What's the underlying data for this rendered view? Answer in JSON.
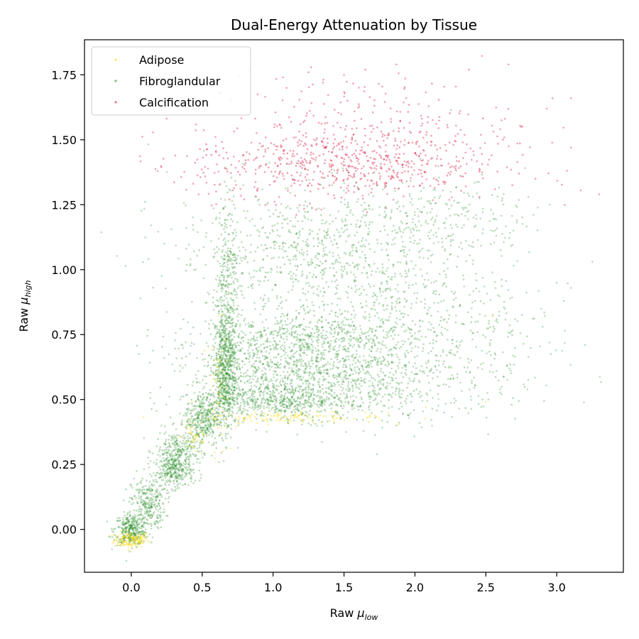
{
  "chart_data": {
    "type": "scatter",
    "title": "Dual-Energy Attenuation by Tissue",
    "xlabel": {
      "prefix": "Raw ",
      "symbol": "μ",
      "subscript": "low"
    },
    "ylabel": {
      "prefix": "Raw ",
      "symbol": "μ",
      "subscript": "high"
    },
    "xlim": [
      -0.33,
      3.47
    ],
    "ylim": [
      -0.165,
      1.885
    ],
    "xticks": [
      0.0,
      0.5,
      1.0,
      1.5,
      2.0,
      2.5,
      3.0
    ],
    "xtick_labels": [
      "0.0",
      "0.5",
      "1.0",
      "1.5",
      "2.0",
      "2.5",
      "3.0"
    ],
    "yticks": [
      0.0,
      0.25,
      0.5,
      0.75,
      1.0,
      1.25,
      1.5,
      1.75
    ],
    "ytick_labels": [
      "0.00",
      "0.25",
      "0.50",
      "0.75",
      "1.00",
      "1.25",
      "1.50",
      "1.75"
    ],
    "legend_position": "top-left",
    "grid": false,
    "series": [
      {
        "name": "Adipose",
        "color": "#FFD700",
        "clusters": [
          {
            "cx": 0.0,
            "cy": -0.04,
            "sx": 0.06,
            "sy": 0.015,
            "n": 160
          },
          {
            "cx": 0.62,
            "cy": 0.55,
            "sx": 0.03,
            "sy": 0.12,
            "n": 60
          },
          {
            "cx": 1.1,
            "cy": 0.43,
            "sx": 0.35,
            "sy": 0.01,
            "n": 120
          },
          {
            "cx": 0.45,
            "cy": 0.36,
            "sx": 0.05,
            "sy": 0.04,
            "n": 40
          }
        ],
        "points": [
          [
            -0.07,
            -0.06
          ],
          [
            0.05,
            -0.05
          ],
          [
            0.1,
            -0.03
          ],
          [
            0.58,
            0.65
          ],
          [
            0.57,
            0.55
          ],
          [
            0.75,
            0.41
          ],
          [
            1.2,
            0.44
          ],
          [
            1.65,
            0.45
          ],
          [
            2.08,
            0.47
          ],
          [
            2.5,
            0.49
          ],
          [
            2.55,
            0.82
          ]
        ]
      },
      {
        "name": "Fibroglandular",
        "color": "#228B22",
        "clusters": [
          {
            "cx": 0.0,
            "cy": 0.0,
            "sx": 0.06,
            "sy": 0.03,
            "n": 300
          },
          {
            "cx": 0.12,
            "cy": 0.1,
            "sx": 0.06,
            "sy": 0.05,
            "n": 280
          },
          {
            "cx": 0.3,
            "cy": 0.22,
            "sx": 0.07,
            "sy": 0.03,
            "n": 260
          },
          {
            "cx": 0.33,
            "cy": 0.3,
            "sx": 0.08,
            "sy": 0.04,
            "n": 260
          },
          {
            "cx": 0.5,
            "cy": 0.42,
            "sx": 0.06,
            "sy": 0.05,
            "n": 320
          },
          {
            "cx": 0.66,
            "cy": 0.62,
            "sx": 0.04,
            "sy": 0.12,
            "n": 600
          },
          {
            "cx": 0.68,
            "cy": 0.95,
            "sx": 0.04,
            "sy": 0.18,
            "n": 300
          },
          {
            "cx": 1.0,
            "cy": 0.49,
            "sx": 0.3,
            "sy": 0.03,
            "n": 500
          },
          {
            "cx": 1.1,
            "cy": 0.6,
            "sx": 0.35,
            "sy": 0.08,
            "n": 700
          },
          {
            "cx": 1.2,
            "cy": 0.73,
            "sx": 0.45,
            "sy": 0.05,
            "n": 500
          },
          {
            "cx": 1.7,
            "cy": 0.56,
            "sx": 0.45,
            "sy": 0.08,
            "n": 500
          },
          {
            "cx": 1.6,
            "cy": 0.85,
            "sx": 0.5,
            "sy": 0.15,
            "n": 700
          },
          {
            "cx": 1.3,
            "cy": 1.1,
            "sx": 0.5,
            "sy": 0.12,
            "n": 600
          },
          {
            "cx": 2.2,
            "cy": 1.2,
            "sx": 0.3,
            "sy": 0.08,
            "n": 200
          },
          {
            "cx": 2.6,
            "cy": 0.75,
            "sx": 0.25,
            "sy": 0.15,
            "n": 120
          }
        ],
        "points": [
          [
            -0.15,
            -0.03
          ],
          [
            -0.12,
            -0.04
          ],
          [
            2.9,
            0.78
          ],
          [
            3.0,
            0.95
          ],
          [
            3.1,
            0.93
          ],
          [
            3.2,
            0.71
          ],
          [
            2.95,
            1.25
          ],
          [
            2.8,
            1.28
          ],
          [
            3.05,
            0.88
          ]
        ]
      },
      {
        "name": "Calcification",
        "color": "#DC143C",
        "clusters": [
          {
            "cx": 1.5,
            "cy": 1.4,
            "sx": 0.55,
            "sy": 0.07,
            "n": 600
          },
          {
            "cx": 1.6,
            "cy": 1.55,
            "sx": 0.55,
            "sy": 0.1,
            "n": 250
          }
        ],
        "points": [
          [
            1.25,
            1.76
          ],
          [
            1.5,
            1.75
          ],
          [
            1.65,
            1.77
          ],
          [
            1.87,
            1.79
          ],
          [
            2.38,
            1.77
          ],
          [
            2.66,
            1.79
          ],
          [
            1.07,
            1.74
          ],
          [
            2.97,
            1.66
          ],
          [
            3.1,
            1.66
          ],
          [
            3.1,
            1.47
          ],
          [
            3.3,
            1.29
          ],
          [
            2.93,
            1.62
          ],
          [
            2.75,
            1.55
          ],
          [
            2.85,
            1.35
          ]
        ]
      }
    ]
  }
}
